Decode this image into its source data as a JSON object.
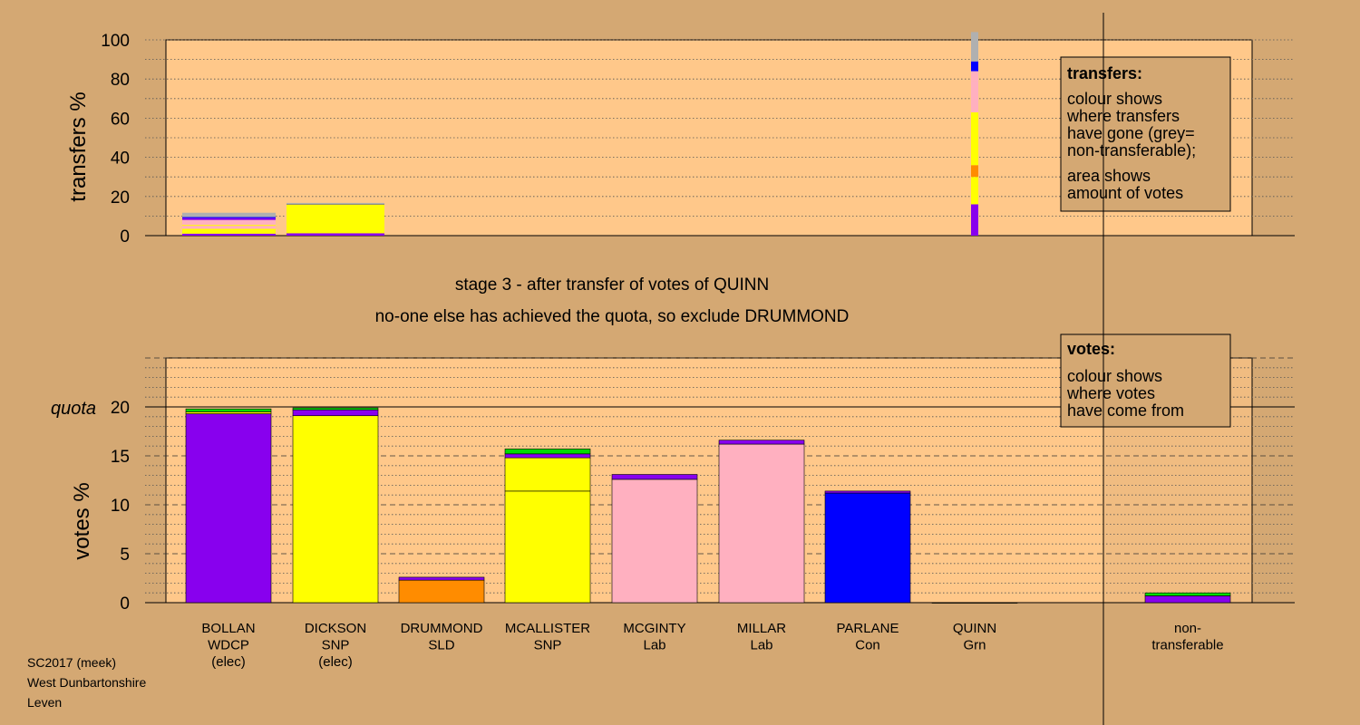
{
  "colors": {
    "page_bg": "#d4a873",
    "panel_bg": "#ffc88a",
    "WDCP": "#8800ee",
    "SNP": "#ffff00",
    "SLD": "#ff8c00",
    "Lab": "#ffb0c0",
    "Con": "#0000ff",
    "Grn": "#00dd00",
    "non_transferable": "#b0b0b0"
  },
  "headings": {
    "stage": "stage 3 - after transfer of votes of QUINN",
    "status": "no-one else has achieved the quota, so exclude DRUMMOND"
  },
  "footer": [
    "SC2017 (meek)",
    "West Dunbartonshire",
    "Leven"
  ],
  "legend_transfers": {
    "title": "transfers:",
    "lines": [
      "colour shows",
      "where transfers",
      "have gone (grey=",
      "non-transferable);",
      "area shows",
      "amount of votes"
    ]
  },
  "legend_votes": {
    "title": "votes:",
    "lines": [
      "colour shows",
      "where votes",
      "have come from"
    ]
  },
  "chart_data": [
    {
      "type": "bar",
      "stacked": true,
      "ylabel": "transfers %",
      "ylim": [
        0,
        100
      ],
      "yticks": [
        0,
        20,
        40,
        60,
        80,
        100
      ],
      "grid": "dotted",
      "bars": [
        {
          "candidate": "BOLLAN",
          "width": "wide",
          "segments": [
            {
              "party": "WDCP",
              "value": 1
            },
            {
              "party": "SNP",
              "value": 2.5
            },
            {
              "party": "Lab",
              "value": 1.5
            },
            {
              "party": "SNP",
              "value": 0.5
            },
            {
              "party": "Lab",
              "value": 2.5
            },
            {
              "party": "WDCP",
              "value": 1
            },
            {
              "party": "Con",
              "value": 0.5
            },
            {
              "party": "non_transferable",
              "value": 2.2
            }
          ]
        },
        {
          "candidate": "DICKSON",
          "width": "wide",
          "segments": [
            {
              "party": "WDCP",
              "value": 1.2
            },
            {
              "party": "SNP",
              "value": 14.8
            },
            {
              "party": "Con",
              "value": 0.2
            },
            {
              "party": "non_transferable",
              "value": 0.5
            }
          ]
        },
        {
          "candidate": "QUINN",
          "width": "narrow",
          "segments": [
            {
              "party": "WDCP",
              "value": 16
            },
            {
              "party": "SNP",
              "value": 14
            },
            {
              "party": "SLD",
              "value": 6
            },
            {
              "party": "SNP",
              "value": 27
            },
            {
              "party": "Lab",
              "value": 16
            },
            {
              "party": "Lab",
              "value": 5
            },
            {
              "party": "Con",
              "value": 5
            },
            {
              "party": "non_transferable",
              "value": 15
            }
          ]
        }
      ]
    },
    {
      "type": "bar",
      "stacked": true,
      "ylabel": "votes %",
      "ylim": [
        0,
        25
      ],
      "yticks": [
        0,
        5,
        10,
        15,
        20
      ],
      "quota": 20,
      "quota_label": "quota",
      "grid": "dotted",
      "categories": [
        {
          "name": "BOLLAN",
          "party": "WDCP",
          "status": "(elec)"
        },
        {
          "name": "DICKSON",
          "party": "SNP",
          "status": "(elec)"
        },
        {
          "name": "DRUMMOND",
          "party": "SLD",
          "status": ""
        },
        {
          "name": "MCALLISTER",
          "party": "SNP",
          "status": ""
        },
        {
          "name": "MCGINTY",
          "party": "Lab",
          "status": ""
        },
        {
          "name": "MILLAR",
          "party": "Lab",
          "status": ""
        },
        {
          "name": "PARLANE",
          "party": "Con",
          "status": ""
        },
        {
          "name": "QUINN",
          "party": "Grn",
          "status": ""
        },
        {
          "name": "non-",
          "party": "transferable",
          "status": ""
        }
      ],
      "stacks": [
        [
          {
            "party": "WDCP",
            "value": 19.3
          },
          {
            "party": "SNP",
            "value": 0.2
          },
          {
            "party": "Grn",
            "value": 0.3
          }
        ],
        [
          {
            "party": "SNP",
            "value": 19.1
          },
          {
            "party": "WDCP",
            "value": 0.6
          },
          {
            "party": "Grn",
            "value": 0.2
          }
        ],
        [
          {
            "party": "SLD",
            "value": 2.3
          },
          {
            "party": "WDCP",
            "value": 0.3
          }
        ],
        [
          {
            "party": "SNP",
            "value": 11.4
          },
          {
            "party": "SNP",
            "value": 3.4
          },
          {
            "party": "WDCP",
            "value": 0.4
          },
          {
            "party": "Grn",
            "value": 0.5
          }
        ],
        [
          {
            "party": "Lab",
            "value": 12.6
          },
          {
            "party": "WDCP",
            "value": 0.5
          }
        ],
        [
          {
            "party": "Lab",
            "value": 16.2
          },
          {
            "party": "WDCP",
            "value": 0.4
          }
        ],
        [
          {
            "party": "Con",
            "value": 11.2
          },
          {
            "party": "WDCP",
            "value": 0.2
          }
        ],
        [
          {
            "party": "Grn",
            "value": 0
          }
        ],
        [
          {
            "party": "WDCP",
            "value": 0.7
          },
          {
            "party": "Grn",
            "value": 0.3
          }
        ]
      ]
    }
  ]
}
